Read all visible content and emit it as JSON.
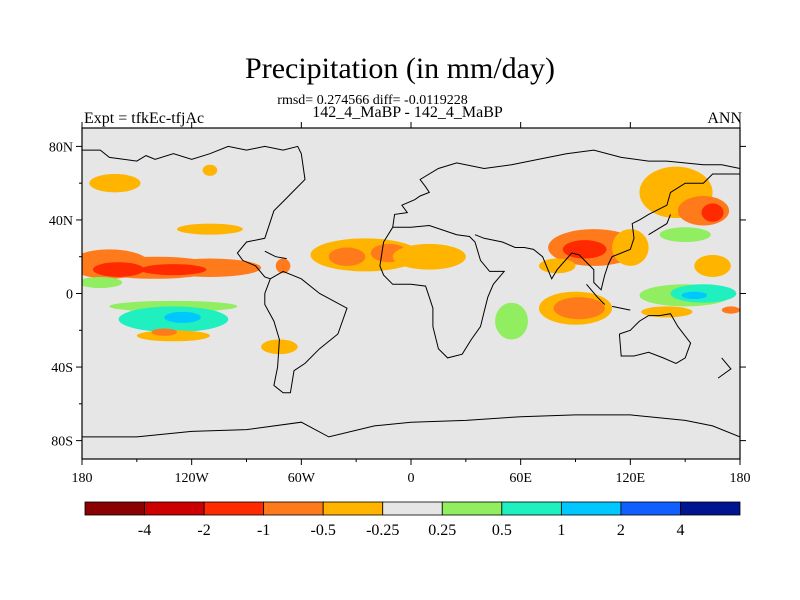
{
  "chart_data": {
    "type": "heatmap",
    "title": "Precipitation (in mm/day)",
    "stats_line": "rmsd= 0.274566 diff= -0.0119228",
    "subtitle": "142_4_MaBP - 142_4_MaBP",
    "left_label": "Expt = tfkEc-tfjAc",
    "right_label": "ANN",
    "xlim": [
      -180,
      180
    ],
    "ylim": [
      -90,
      90
    ],
    "x_ticks": [
      {
        "value": -180,
        "label": "180"
      },
      {
        "value": -120,
        "label": "120W"
      },
      {
        "value": -60,
        "label": "60W"
      },
      {
        "value": 0,
        "label": "0"
      },
      {
        "value": 60,
        "label": "60E"
      },
      {
        "value": 120,
        "label": "120E"
      },
      {
        "value": 180,
        "label": "180"
      }
    ],
    "y_ticks": [
      {
        "value": 80,
        "label": "80N"
      },
      {
        "value": 40,
        "label": "40N"
      },
      {
        "value": 0,
        "label": "0"
      },
      {
        "value": -40,
        "label": "40S"
      },
      {
        "value": -80,
        "label": "80S"
      }
    ],
    "colorbar": {
      "colors": [
        "#8b0000",
        "#cc0000",
        "#ff2a00",
        "#ff7a1a",
        "#ffb400",
        "#e6e6e6",
        "#90ee60",
        "#20f0c0",
        "#00c8ff",
        "#1060ff",
        "#001590"
      ],
      "labels": [
        "-4",
        "-2",
        "-1",
        "-0.5",
        "-0.25",
        "0.25",
        "0.5",
        "1",
        "2",
        "4"
      ]
    },
    "background_color": "#e6e6e6",
    "anomalies": [
      {
        "lon": -165,
        "lat": 16,
        "rx": 22,
        "ry": 8,
        "level": "-0.5"
      },
      {
        "lon": -140,
        "lat": 14,
        "rx": 35,
        "ry": 6,
        "level": "-0.5"
      },
      {
        "lon": -110,
        "lat": 14,
        "rx": 28,
        "ry": 5,
        "level": "-0.5"
      },
      {
        "lon": -160,
        "lat": 13,
        "rx": 14,
        "ry": 4,
        "level": "-1"
      },
      {
        "lon": -130,
        "lat": 13,
        "rx": 18,
        "ry": 3,
        "level": "-1"
      },
      {
        "lon": -162,
        "lat": 60,
        "rx": 14,
        "ry": 5,
        "level": "-0.25"
      },
      {
        "lon": -110,
        "lat": 35,
        "rx": 18,
        "ry": 3,
        "level": "-0.25"
      },
      {
        "lon": -110,
        "lat": 67,
        "rx": 4,
        "ry": 3,
        "level": "-0.25"
      },
      {
        "lon": -170,
        "lat": 6,
        "rx": 12,
        "ry": 3,
        "level": "0.5"
      },
      {
        "lon": -130,
        "lat": -7,
        "rx": 35,
        "ry": 3,
        "level": "0.5"
      },
      {
        "lon": -130,
        "lat": -14,
        "rx": 30,
        "ry": 7,
        "level": "1"
      },
      {
        "lon": -125,
        "lat": -13,
        "rx": 10,
        "ry": 3,
        "level": "2"
      },
      {
        "lon": -130,
        "lat": -23,
        "rx": 20,
        "ry": 3,
        "level": "-0.25"
      },
      {
        "lon": -135,
        "lat": -21,
        "rx": 7,
        "ry": 2,
        "level": "-0.5"
      },
      {
        "lon": -72,
        "lat": -29,
        "rx": 10,
        "ry": 4,
        "level": "-0.25"
      },
      {
        "lon": -25,
        "lat": 21,
        "rx": 30,
        "ry": 9,
        "level": "-0.25"
      },
      {
        "lon": -35,
        "lat": 20,
        "rx": 10,
        "ry": 5,
        "level": "-0.5"
      },
      {
        "lon": -12,
        "lat": 22,
        "rx": 10,
        "ry": 5,
        "level": "-0.5"
      },
      {
        "lon": -70,
        "lat": 15,
        "rx": 4,
        "ry": 4,
        "level": "-0.5"
      },
      {
        "lon": 10,
        "lat": 20,
        "rx": 20,
        "ry": 7,
        "level": "-0.25"
      },
      {
        "lon": 55,
        "lat": -15,
        "rx": 9,
        "ry": 10,
        "level": "0.5"
      },
      {
        "lon": 100,
        "lat": 25,
        "rx": 25,
        "ry": 10,
        "level": "-0.5"
      },
      {
        "lon": 95,
        "lat": 24,
        "rx": 12,
        "ry": 5,
        "level": "-1"
      },
      {
        "lon": 120,
        "lat": 25,
        "rx": 10,
        "ry": 10,
        "level": "-0.25"
      },
      {
        "lon": 80,
        "lat": 15,
        "rx": 10,
        "ry": 4,
        "level": "-0.25"
      },
      {
        "lon": 90,
        "lat": -8,
        "rx": 20,
        "ry": 9,
        "level": "-0.25"
      },
      {
        "lon": 92,
        "lat": -8,
        "rx": 14,
        "ry": 6,
        "level": "-0.5"
      },
      {
        "lon": 145,
        "lat": 55,
        "rx": 20,
        "ry": 14,
        "level": "-0.25"
      },
      {
        "lon": 160,
        "lat": 45,
        "rx": 14,
        "ry": 8,
        "level": "-0.5"
      },
      {
        "lon": 165,
        "lat": 44,
        "rx": 6,
        "ry": 5,
        "level": "-1"
      },
      {
        "lon": 165,
        "lat": 15,
        "rx": 10,
        "ry": 6,
        "level": "-0.25"
      },
      {
        "lon": 140,
        "lat": 60,
        "rx": 10,
        "ry": 6,
        "level": "-0.25"
      },
      {
        "lon": 150,
        "lat": 32,
        "rx": 14,
        "ry": 4,
        "level": "0.5"
      },
      {
        "lon": 150,
        "lat": -1,
        "rx": 25,
        "ry": 6,
        "level": "0.5"
      },
      {
        "lon": 160,
        "lat": 0,
        "rx": 18,
        "ry": 5,
        "level": "1"
      },
      {
        "lon": 155,
        "lat": -1,
        "rx": 7,
        "ry": 2,
        "level": "2"
      },
      {
        "lon": 140,
        "lat": -10,
        "rx": 14,
        "ry": 3,
        "level": "-0.25"
      },
      {
        "lon": 175,
        "lat": -9,
        "rx": 5,
        "ry": 2,
        "level": "-0.5"
      }
    ]
  }
}
